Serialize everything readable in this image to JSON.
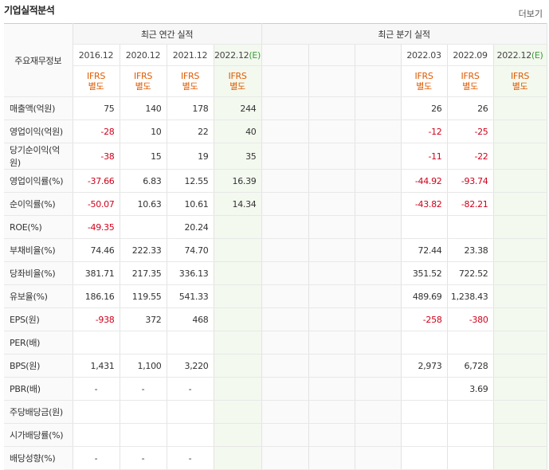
{
  "title": "기업실적분석",
  "more_link": "더보기",
  "table": {
    "row_header": "주요재무정보",
    "groups": [
      {
        "label": "최근 연간 실적",
        "periods": [
          {
            "period": "2016.12",
            "basis": [
              "IFRS",
              "별도"
            ]
          },
          {
            "period": "2020.12",
            "basis": [
              "IFRS",
              "별도"
            ]
          },
          {
            "period": "2021.12",
            "basis": [
              "IFRS",
              "별도"
            ]
          },
          {
            "period": "2022.12",
            "estimate": "(E)",
            "basis": [
              "IFRS",
              "별도"
            ]
          }
        ]
      },
      {
        "label": "최근 분기 실적",
        "periods": [
          {
            "period": null,
            "basis": null
          },
          {
            "period": null,
            "basis": null
          },
          {
            "period": null,
            "basis": null
          },
          {
            "period": "2022.03",
            "basis": [
              "IFRS",
              "별도"
            ]
          },
          {
            "period": "2022.09",
            "basis": [
              "IFRS",
              "별도"
            ]
          },
          {
            "period": "2022.12",
            "estimate": "(E)",
            "basis": [
              "IFRS",
              "별도"
            ]
          }
        ]
      }
    ],
    "sections": [
      {
        "rows": [
          {
            "label": "매출액(억원)",
            "values": [
              "75",
              "140",
              "178",
              "244",
              null,
              null,
              null,
              "26",
              "26",
              null
            ]
          },
          {
            "label": "영업이익(억원)",
            "values": [
              "-28",
              "10",
              "22",
              "40",
              null,
              null,
              null,
              "-12",
              "-25",
              null
            ]
          },
          {
            "label": "당기순이익(억원)",
            "values": [
              "-38",
              "15",
              "19",
              "35",
              null,
              null,
              null,
              "-11",
              "-22",
              null
            ]
          }
        ]
      },
      {
        "rows": [
          {
            "label": "영업이익률(%)",
            "values": [
              "-37.66",
              "6.83",
              "12.55",
              "16.39",
              null,
              null,
              null,
              "-44.92",
              "-93.74",
              null
            ]
          },
          {
            "label": "순이익률(%)",
            "values": [
              "-50.07",
              "10.63",
              "10.61",
              "14.34",
              null,
              null,
              null,
              "-43.82",
              "-82.21",
              null
            ]
          },
          {
            "label": "ROE(%)",
            "values": [
              "-49.35",
              null,
              "20.24",
              null,
              null,
              null,
              null,
              null,
              null,
              null
            ]
          }
        ]
      },
      {
        "rows": [
          {
            "label": "부채비율(%)",
            "values": [
              "74.46",
              "222.33",
              "74.70",
              null,
              null,
              null,
              null,
              "72.44",
              "23.38",
              null
            ]
          },
          {
            "label": "당좌비율(%)",
            "values": [
              "381.71",
              "217.35",
              "336.13",
              null,
              null,
              null,
              null,
              "351.52",
              "722.52",
              null
            ]
          },
          {
            "label": "유보율(%)",
            "values": [
              "186.16",
              "119.55",
              "541.33",
              null,
              null,
              null,
              null,
              "489.69",
              "1,238.43",
              null
            ]
          }
        ]
      },
      {
        "rows": [
          {
            "label": "EPS(원)",
            "values": [
              "-938",
              "372",
              "468",
              null,
              null,
              null,
              null,
              "-258",
              "-380",
              null
            ]
          },
          {
            "label": "PER(배)",
            "values": [
              null,
              null,
              null,
              null,
              null,
              null,
              null,
              null,
              null,
              null
            ]
          },
          {
            "label": "BPS(원)",
            "values": [
              "1,431",
              "1,100",
              "3,220",
              null,
              null,
              null,
              null,
              "2,973",
              "6,728",
              null
            ]
          },
          {
            "label": "PBR(배)",
            "values": [
              "-",
              "-",
              "-",
              null,
              null,
              null,
              null,
              null,
              "3.69",
              null
            ]
          }
        ]
      },
      {
        "rows": [
          {
            "label": "주당배당금(원)",
            "values": [
              null,
              null,
              null,
              null,
              null,
              null,
              null,
              null,
              null,
              null
            ]
          },
          {
            "label": "시가배당률(%)",
            "values": [
              null,
              null,
              null,
              null,
              null,
              null,
              null,
              null,
              null,
              null
            ]
          },
          {
            "label": "배당성향(%)",
            "values": [
              "-",
              "-",
              "-",
              null,
              null,
              null,
              null,
              null,
              null,
              null
            ]
          }
        ]
      }
    ]
  }
}
